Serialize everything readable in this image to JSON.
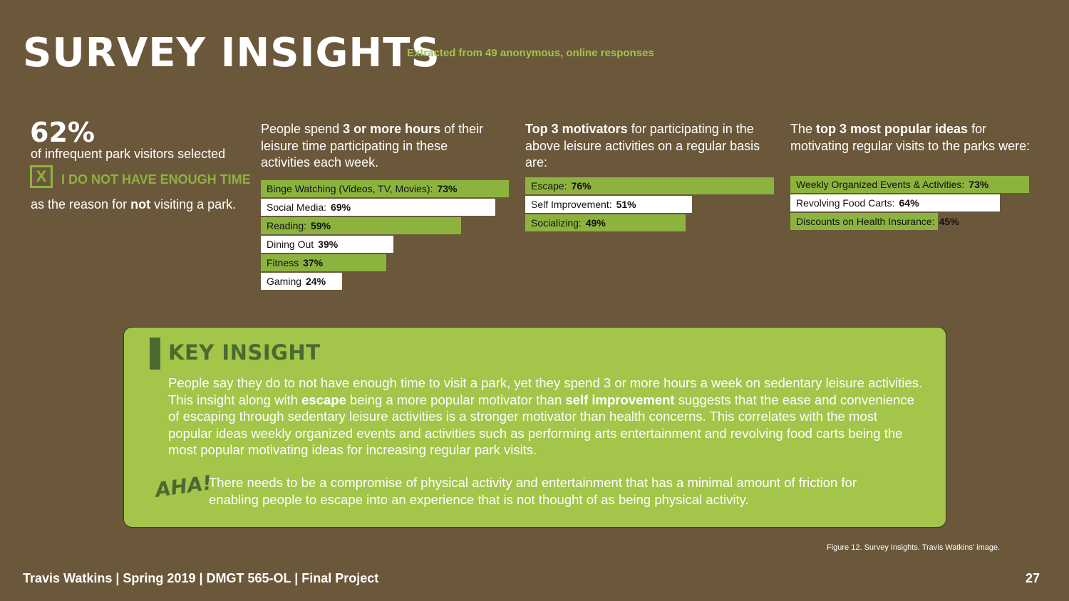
{
  "header": {
    "title": "SURVEY INSIGHTS",
    "subtitle": "Extracted from 49 anonymous, online responses"
  },
  "stat": {
    "percent": "62%",
    "line1": "of infrequent park visitors selected",
    "check_mark": "X",
    "choice": "I DO NOT HAVE ENOUGH TIME",
    "line3_pre": "as the reason for ",
    "line3_bold": "not",
    "line3_post": " visiting a park."
  },
  "columns": [
    {
      "intro_pre": "People spend ",
      "intro_bold": "3 or more hours",
      "intro_post": " of their leisure time participating in these activities each week.",
      "bars": [
        {
          "label": "Binge Watching (Videos, TV, Movies):",
          "value": "73%",
          "pct": 73,
          "color": "green"
        },
        {
          "label": "Social Media:",
          "value": "69%",
          "pct": 69,
          "color": "white"
        },
        {
          "label": "Reading:",
          "value": "59%",
          "pct": 59,
          "color": "green"
        },
        {
          "label": "Dining Out",
          "value": "39%",
          "pct": 39,
          "color": "white"
        },
        {
          "label": "Fitness",
          "value": "37%",
          "pct": 37,
          "color": "green"
        },
        {
          "label": "Gaming",
          "value": "24%",
          "pct": 24,
          "color": "white"
        }
      ]
    },
    {
      "intro_pre": "",
      "intro_bold": "Top 3 motivators",
      "intro_post": " for participating in the above leisure activities on a regular basis are:",
      "bars": [
        {
          "label": "Escape:",
          "value": "76%",
          "pct": 76,
          "color": "green"
        },
        {
          "label": "Self Improvement:",
          "value": "51%",
          "pct": 51,
          "color": "white"
        },
        {
          "label": "Socializing:",
          "value": "49%",
          "pct": 49,
          "color": "green"
        }
      ]
    },
    {
      "intro_pre": "The ",
      "intro_bold": "top 3 most popular ideas",
      "intro_post": " for motivating regular visits to the parks were:",
      "bars": [
        {
          "label": "Weekly Organized Events & Activities:",
          "value": "73%",
          "pct": 73,
          "color": "green"
        },
        {
          "label": "Revolving Food Carts:",
          "value": "64%",
          "pct": 64,
          "color": "white"
        },
        {
          "label": "Discounts on Health Insurance:",
          "value": "45%",
          "pct": 45,
          "color": "green"
        }
      ]
    }
  ],
  "insight": {
    "heading": "KEY INSIGHT",
    "body_1": "People say they do to not have enough time to visit a park, yet they spend 3 or more hours a week on sedentary leisure activities. This insight along with ",
    "body_bold_1": "escape",
    "body_2": " being a more popular motivator than ",
    "body_bold_2": "self improvement",
    "body_3": " suggests that the ease and convenience of escaping through sedentary leisure activities is a stronger motivator than health concerns. This correlates with the most popular ideas weekly organized events and activities such as performing arts entertainment and revolving food carts being the most popular motivating ideas for increasing regular park visits.",
    "aha_label": "AHA!",
    "aha_text": "There needs to be a compromise of physical activity and entertainment that has a minimal amount of friction for enabling people to escape into an experience that is not thought of as being physical activity."
  },
  "caption": "Figure 12. Survey Insights. Travis Watkins' image.",
  "footer": {
    "text": "Travis Watkins | Spring 2019 | DMGT 565-OL | Final Project",
    "page": "27"
  },
  "colors": {
    "background": "#6b583b",
    "accent_green": "#8db33f",
    "panel_green": "#a3c54a",
    "dark_green": "#4b6a31"
  }
}
